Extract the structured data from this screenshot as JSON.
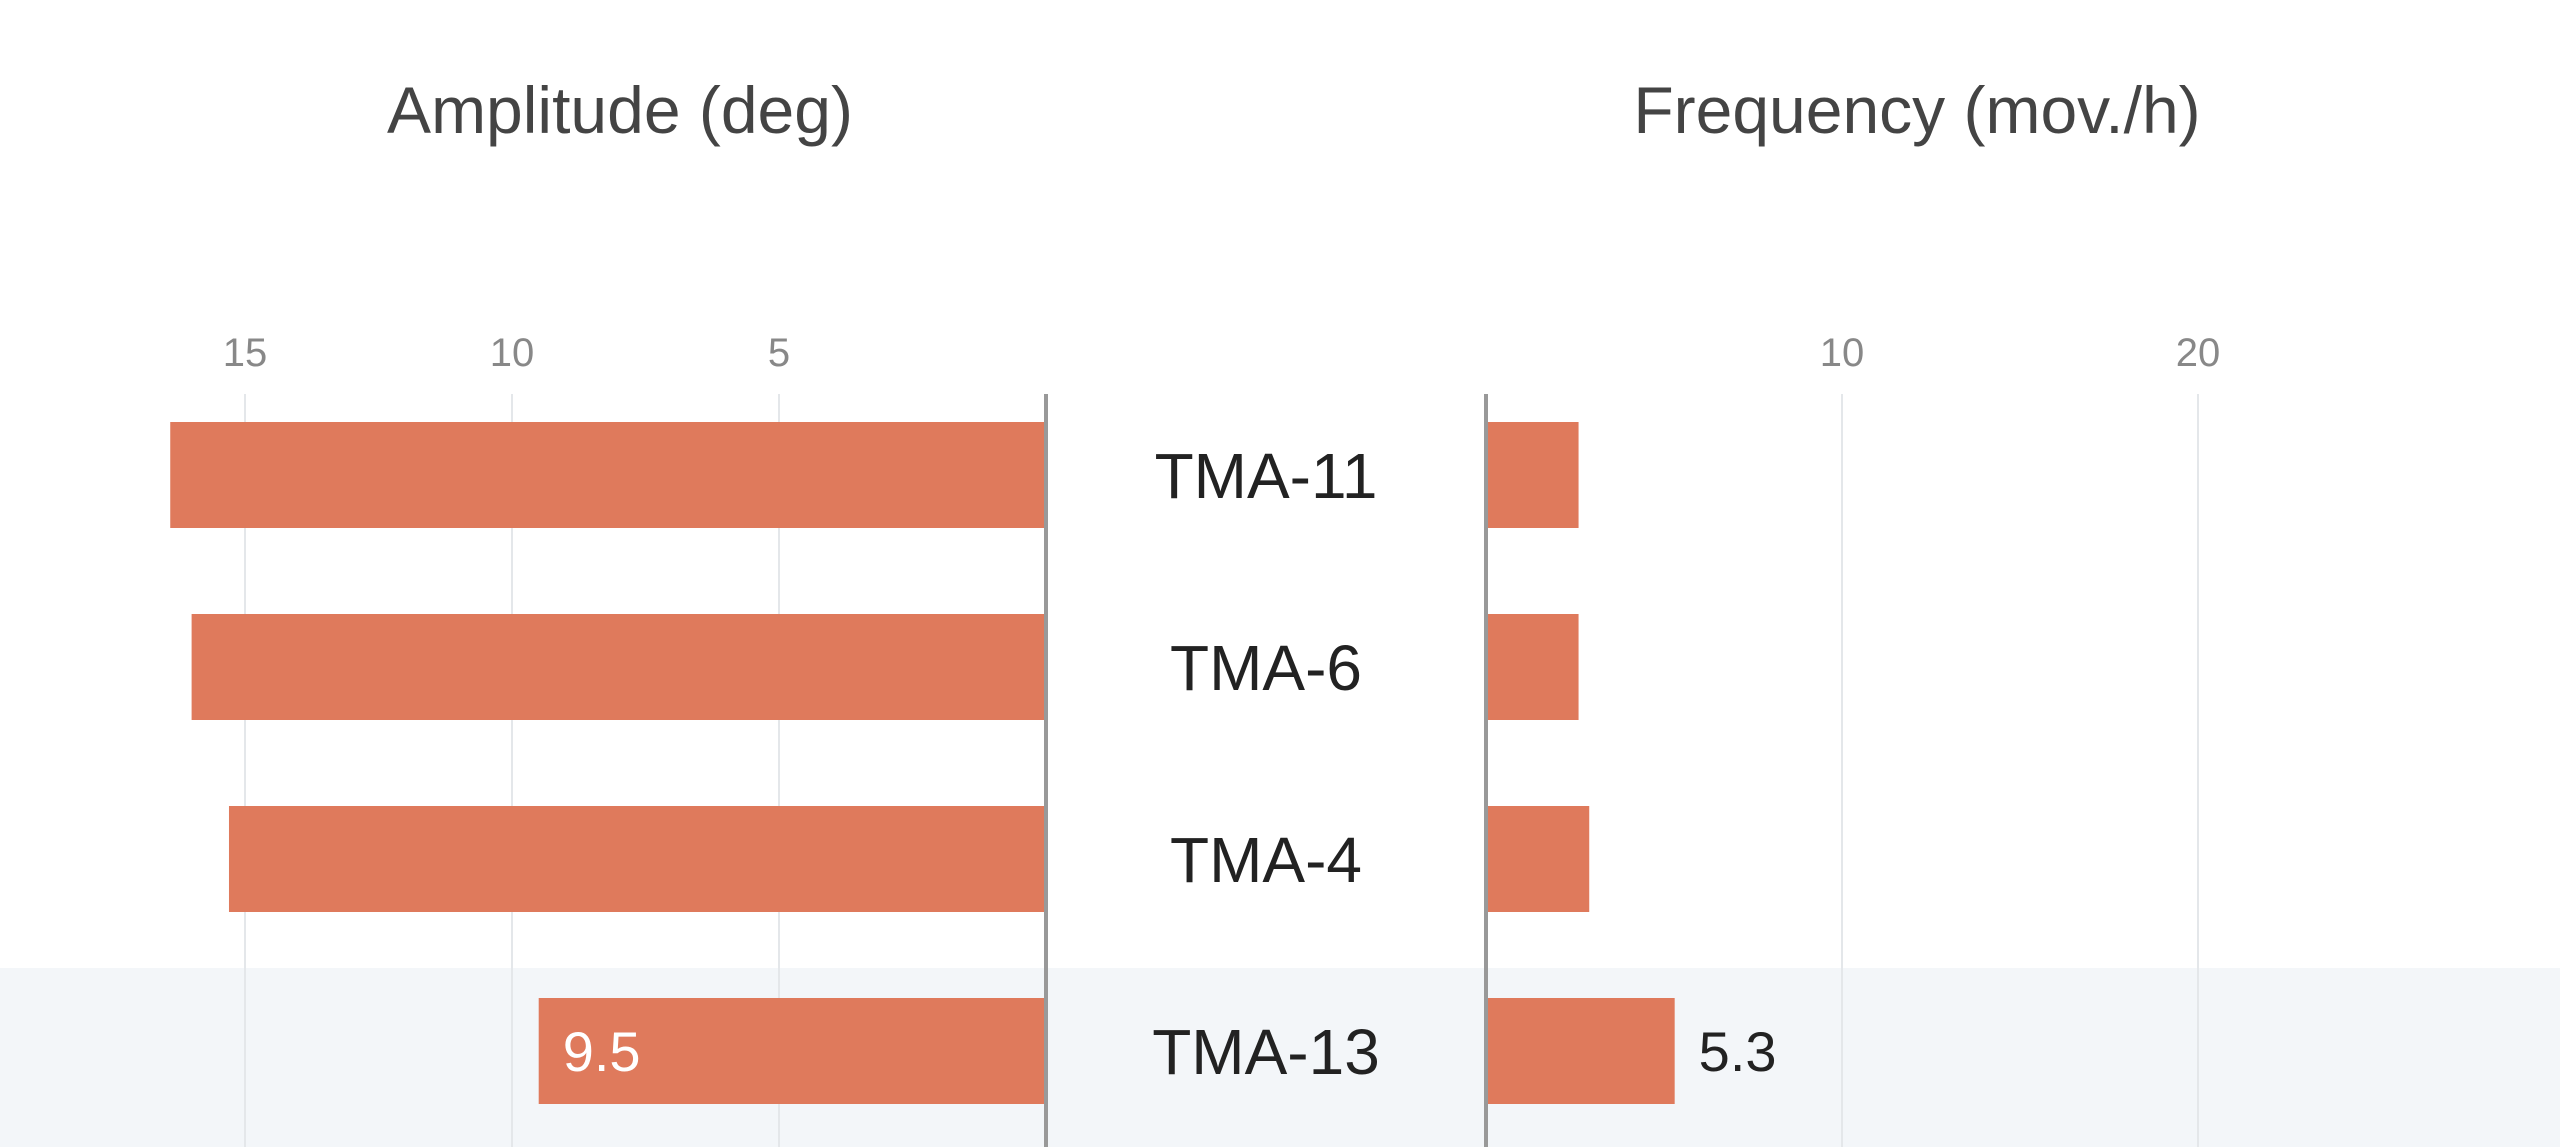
{
  "chart_data": [
    {
      "type": "bar",
      "orientation": "horizontal",
      "direction": "right-to-left",
      "title": "Amplitude (deg)",
      "categories": [
        "TMA-11",
        "TMA-6",
        "TMA-4",
        "TMA-13"
      ],
      "values": [
        16.4,
        16.0,
        15.3,
        9.5
      ],
      "ticks": [
        "15",
        "10",
        "5"
      ],
      "tick_values": [
        15,
        10,
        5
      ],
      "xlim": [
        0,
        19.6
      ],
      "grid": true,
      "data_labels": [
        null,
        null,
        null,
        "9.5"
      ],
      "highlighted_category": "TMA-13"
    },
    {
      "type": "bar",
      "orientation": "horizontal",
      "direction": "left-to-right",
      "title": "Frequency (mov./h)",
      "categories": [
        "TMA-11",
        "TMA-6",
        "TMA-4",
        "TMA-13"
      ],
      "values": [
        2.6,
        2.6,
        2.9,
        5.3
      ],
      "ticks": [
        "10",
        "20"
      ],
      "tick_values": [
        10,
        20
      ],
      "xlim": [
        0,
        30.5
      ],
      "grid": true,
      "data_labels": [
        null,
        null,
        null,
        "5.3"
      ],
      "highlighted_category": "TMA-13"
    }
  ],
  "colors": {
    "bar": "#df7a5c",
    "highlight_band": "#f3f6f9",
    "grid": "#e4e7ea",
    "axis": "#999999",
    "tick_text": "#888888",
    "title_text": "#444444",
    "category_text": "#222222",
    "value_label_inside": "#ffffff",
    "value_label_outside": "#222222"
  }
}
